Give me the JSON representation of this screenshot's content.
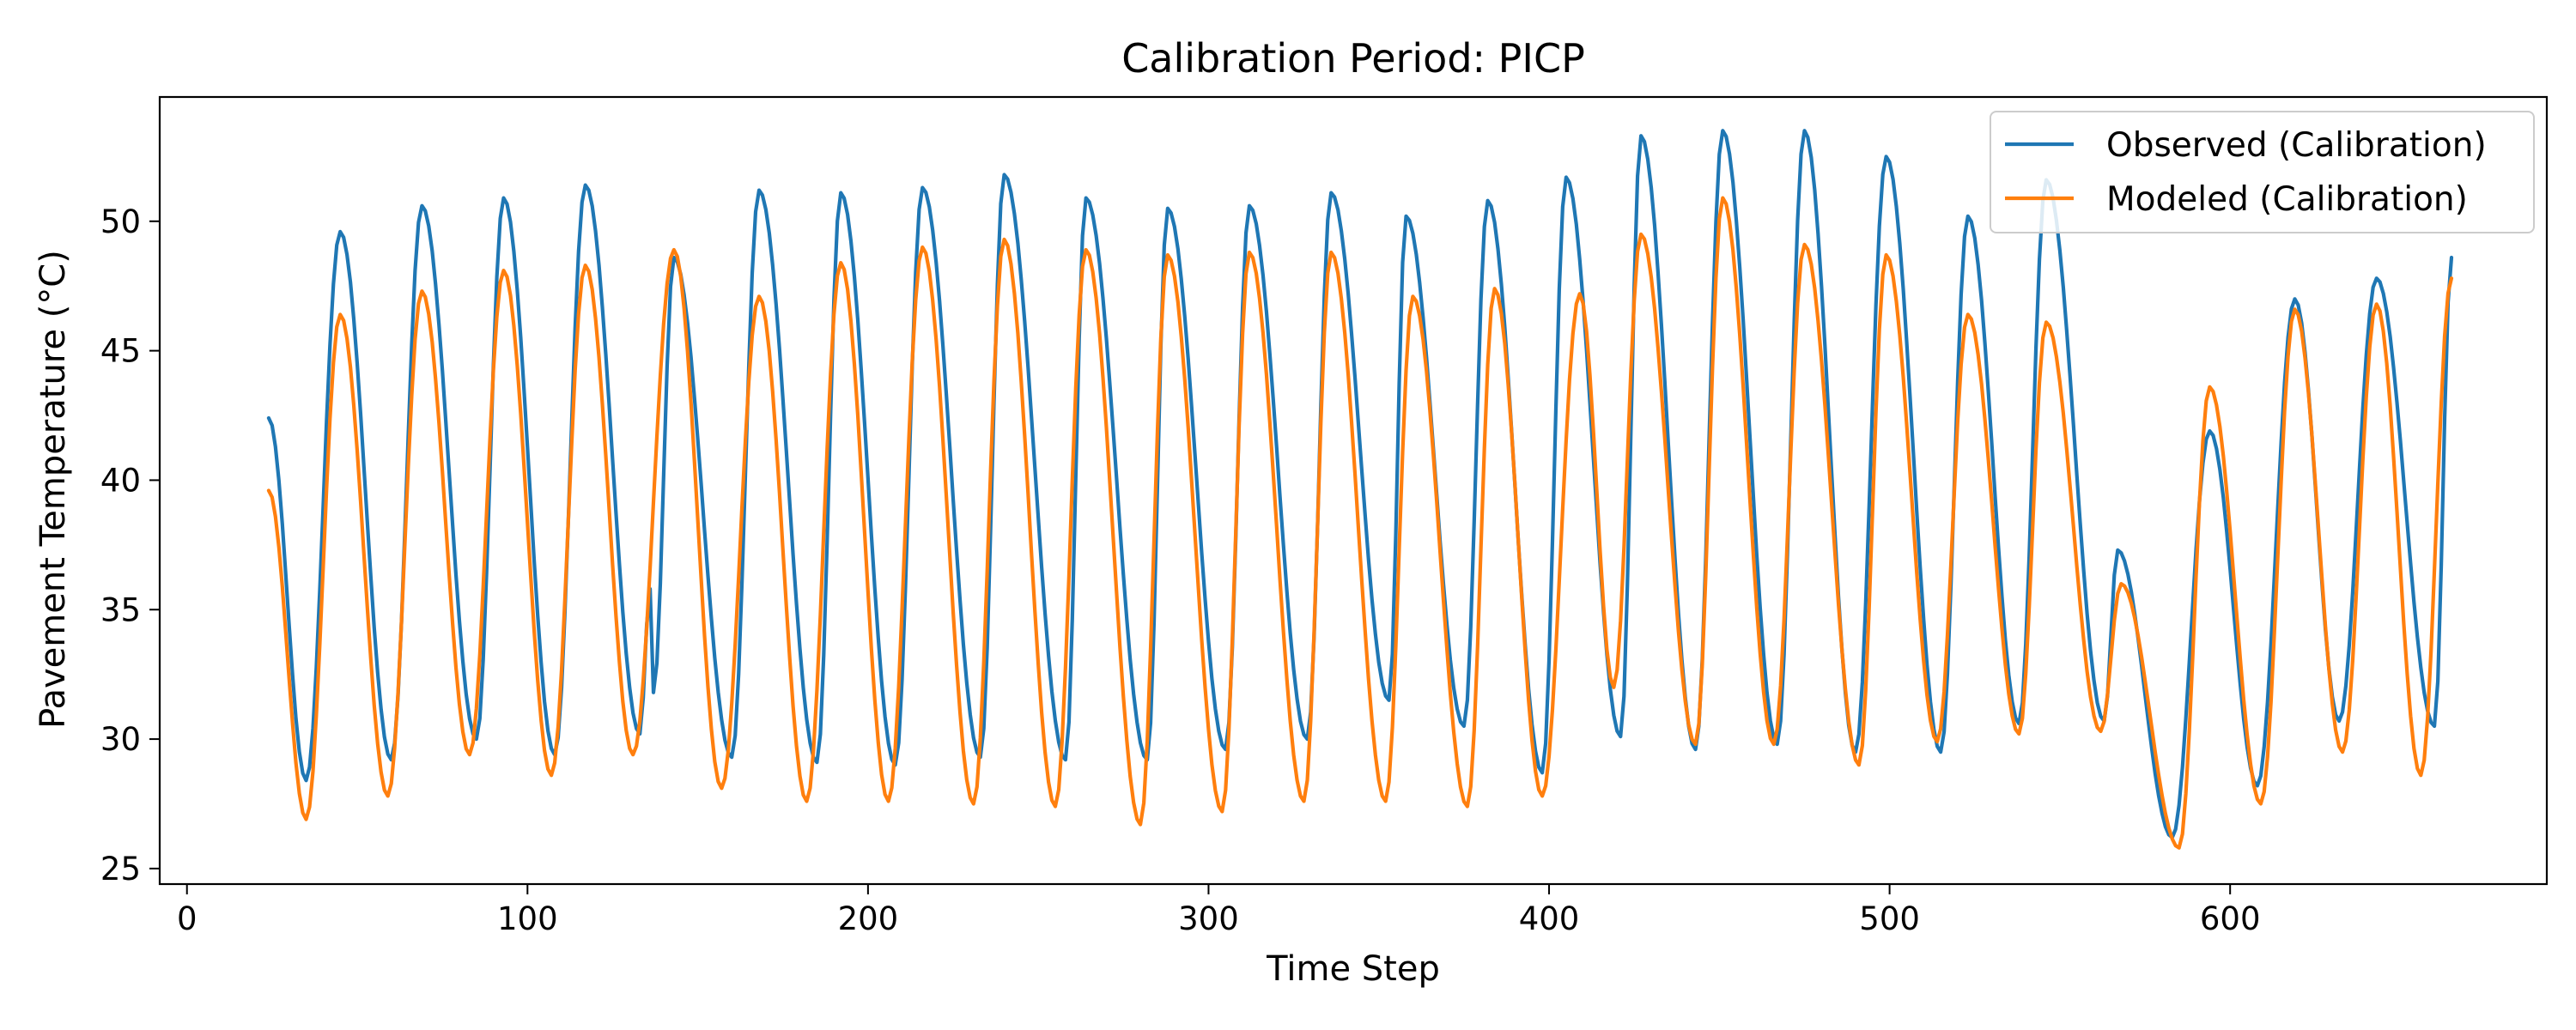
{
  "chart_data": {
    "type": "line",
    "title": "Calibration Period: PICP",
    "xlabel": "Time Step",
    "ylabel": "Pavement Temperature (°C)",
    "xlim": [
      -8,
      693
    ],
    "ylim": [
      24.4,
      54.8
    ],
    "xticks": [
      0,
      100,
      200,
      300,
      400,
      500,
      600
    ],
    "yticks": [
      25,
      30,
      35,
      40,
      45,
      50
    ],
    "grid": false,
    "legend_position": "top-right",
    "x_start": 24,
    "x_end": 665,
    "series": [
      {
        "name": "Observed (Calibration)",
        "color": "#1f77b4",
        "start_value": 42.4,
        "mins": [
          [
            35,
            28.4
          ],
          [
            60,
            29.2
          ],
          [
            85,
            30.0
          ],
          [
            108,
            29.4
          ],
          [
            133,
            30.2
          ],
          [
            137,
            31.8
          ],
          [
            160,
            29.3
          ],
          [
            185,
            29.1
          ],
          [
            208,
            29.0
          ],
          [
            233,
            29.3
          ],
          [
            258,
            29.2
          ],
          [
            282,
            29.2
          ],
          [
            305,
            29.6
          ],
          [
            329,
            30.0
          ],
          [
            353,
            31.5
          ],
          [
            375,
            30.5
          ],
          [
            398,
            28.7
          ],
          [
            421,
            30.1
          ],
          [
            443,
            29.6
          ],
          [
            467,
            29.8
          ],
          [
            490,
            29.5
          ],
          [
            515,
            29.5
          ],
          [
            538,
            30.6
          ],
          [
            563,
            30.7
          ],
          [
            583,
            26.2
          ],
          [
            608,
            28.2
          ],
          [
            632,
            30.7
          ],
          [
            660,
            30.5
          ]
        ],
        "maxs": [
          [
            45,
            49.6
          ],
          [
            69,
            50.6
          ],
          [
            93,
            50.9
          ],
          [
            117,
            51.4
          ],
          [
            136,
            35.8
          ],
          [
            143,
            48.6
          ],
          [
            168,
            51.2
          ],
          [
            192,
            51.1
          ],
          [
            216,
            51.3
          ],
          [
            240,
            51.8
          ],
          [
            264,
            50.9
          ],
          [
            288,
            50.5
          ],
          [
            312,
            50.6
          ],
          [
            336,
            51.1
          ],
          [
            358,
            50.2
          ],
          [
            382,
            50.8
          ],
          [
            405,
            51.7
          ],
          [
            427,
            53.3
          ],
          [
            451,
            53.5
          ],
          [
            475,
            53.5
          ],
          [
            499,
            52.5
          ],
          [
            523,
            50.2
          ],
          [
            546,
            51.6
          ],
          [
            567,
            37.3
          ],
          [
            594,
            41.9
          ],
          [
            619,
            47.0
          ],
          [
            643,
            47.8
          ]
        ],
        "end_value": 48.6
      },
      {
        "name": "Modeled (Calibration)",
        "color": "#ff7f0e",
        "start_value": 39.6,
        "mins": [
          [
            35,
            26.9
          ],
          [
            59,
            27.8
          ],
          [
            83,
            29.4
          ],
          [
            107,
            28.6
          ],
          [
            131,
            29.4
          ],
          [
            157,
            28.1
          ],
          [
            182,
            27.6
          ],
          [
            206,
            27.6
          ],
          [
            231,
            27.5
          ],
          [
            255,
            27.4
          ],
          [
            280,
            26.7
          ],
          [
            304,
            27.2
          ],
          [
            328,
            27.6
          ],
          [
            352,
            27.6
          ],
          [
            376,
            27.4
          ],
          [
            398,
            27.8
          ],
          [
            419,
            32.0
          ],
          [
            443,
            29.8
          ],
          [
            466,
            29.8
          ],
          [
            491,
            29.0
          ],
          [
            514,
            29.9
          ],
          [
            538,
            30.2
          ],
          [
            562,
            30.3
          ],
          [
            585,
            25.8
          ],
          [
            609,
            27.5
          ],
          [
            633,
            29.5
          ],
          [
            656,
            28.6
          ]
        ],
        "maxs": [
          [
            45,
            46.4
          ],
          [
            69,
            47.3
          ],
          [
            93,
            48.1
          ],
          [
            117,
            48.3
          ],
          [
            143,
            48.9
          ],
          [
            168,
            47.1
          ],
          [
            192,
            48.4
          ],
          [
            216,
            49.0
          ],
          [
            240,
            49.3
          ],
          [
            264,
            48.9
          ],
          [
            288,
            48.7
          ],
          [
            312,
            48.8
          ],
          [
            336,
            48.8
          ],
          [
            360,
            47.1
          ],
          [
            384,
            47.4
          ],
          [
            409,
            47.2
          ],
          [
            427,
            49.5
          ],
          [
            451,
            50.9
          ],
          [
            475,
            49.1
          ],
          [
            499,
            48.7
          ],
          [
            523,
            46.4
          ],
          [
            546,
            46.1
          ],
          [
            568,
            36.0
          ],
          [
            594,
            43.6
          ],
          [
            619,
            46.6
          ],
          [
            643,
            46.8
          ]
        ],
        "end_value": 47.8
      }
    ]
  }
}
